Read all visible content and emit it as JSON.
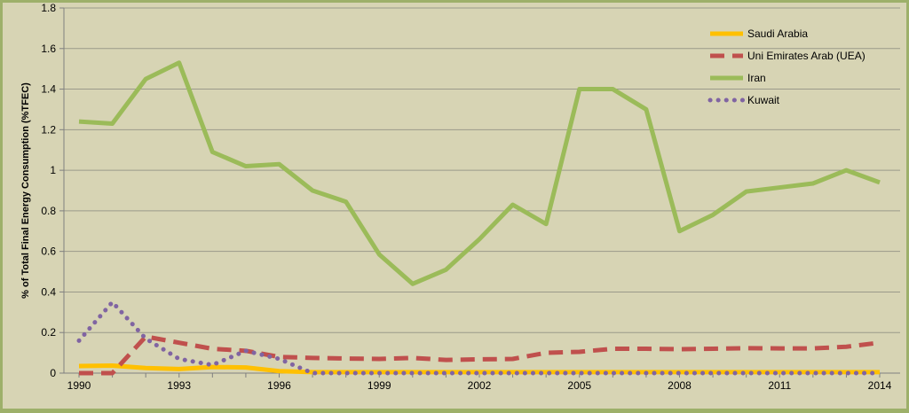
{
  "chart_data": {
    "type": "line",
    "title": "",
    "xlabel": "",
    "ylabel": "% of Total Final Energy Consumption (%TFEC)",
    "x": [
      1990,
      1991,
      1992,
      1993,
      1994,
      1995,
      1996,
      1997,
      1998,
      1999,
      2000,
      2001,
      2002,
      2003,
      2004,
      2005,
      2006,
      2007,
      2008,
      2009,
      2010,
      2011,
      2012,
      2013,
      2014
    ],
    "x_ticks": [
      "1990",
      "1993",
      "1996",
      "1999",
      "2002",
      "2005",
      "2008",
      "2011",
      "2014"
    ],
    "y_ticks": [
      "0",
      "0.2",
      "0.4",
      "0.6",
      "0.8",
      "1",
      "1.2",
      "1.4",
      "1.6",
      "1.8"
    ],
    "ylim": [
      0,
      1.8
    ],
    "grid": "horizontal",
    "legend_position": "top-right",
    "series": [
      {
        "name": "Saudi Arabia",
        "color": "#ffc000",
        "style": "solid",
        "values": [
          0.035,
          0.037,
          0.025,
          0.02,
          0.03,
          0.028,
          0.01,
          0.005,
          0.005,
          0.005,
          0.005,
          0.005,
          0.005,
          0.005,
          0.005,
          0.005,
          0.005,
          0.005,
          0.005,
          0.005,
          0.005,
          0.005,
          0.005,
          0.005,
          0.005
        ]
      },
      {
        "name": "Uni Emirates Arab (UEA)",
        "color": "#c0504d",
        "style": "dashed",
        "values": [
          0.0,
          0.0,
          0.18,
          0.15,
          0.12,
          0.11,
          0.08,
          0.075,
          0.072,
          0.07,
          0.075,
          0.065,
          0.068,
          0.07,
          0.1,
          0.105,
          0.12,
          0.12,
          0.118,
          0.12,
          0.123,
          0.122,
          0.122,
          0.13,
          0.15
        ]
      },
      {
        "name": "Iran",
        "color": "#9bbb59",
        "style": "solid",
        "values": [
          1.24,
          1.23,
          1.45,
          1.53,
          1.09,
          1.02,
          1.03,
          0.9,
          0.845,
          0.585,
          0.44,
          0.51,
          0.66,
          0.83,
          0.735,
          1.4,
          1.4,
          1.3,
          0.7,
          0.78,
          0.895,
          0.915,
          0.935,
          1.0,
          0.94
        ]
      },
      {
        "name": "Kuwait",
        "color": "#8064a2",
        "style": "dotted",
        "values": [
          0.16,
          0.35,
          0.17,
          0.07,
          0.04,
          0.11,
          0.07,
          0.0,
          0.0,
          0.0,
          0.0,
          0.0,
          0.0,
          0.0,
          0.0,
          0.0,
          0.0,
          0.0,
          0.0,
          0.0,
          0.0,
          0.0,
          0.0,
          0.0,
          0.0
        ]
      }
    ]
  }
}
